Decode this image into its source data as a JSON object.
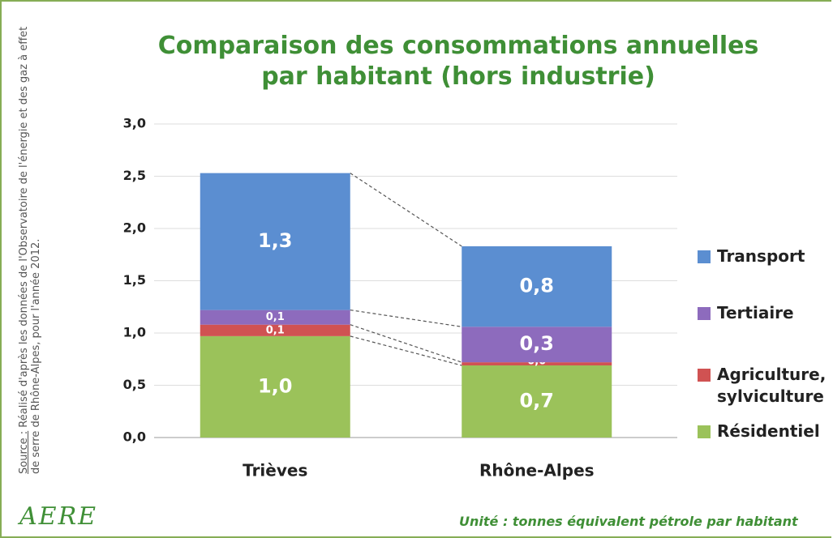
{
  "chart_data": {
    "type": "stacked_bar",
    "title": "Comparaison des consommations annuelles par habitant (hors industrie)",
    "categories": [
      "Trièves",
      "Rhône-Alpes"
    ],
    "series": [
      {
        "name": "Résidentiel",
        "color": "#9bc25a",
        "values": [
          0.97,
          0.69
        ],
        "value_labels": [
          "1,0",
          "0,7"
        ]
      },
      {
        "name": "Agriculture, sylviculture",
        "color": "#d05252",
        "values": [
          0.11,
          0.03
        ],
        "value_labels": [
          "0,1",
          "0,0"
        ]
      },
      {
        "name": "Tertiaire",
        "color": "#8d6bbd",
        "values": [
          0.14,
          0.34
        ],
        "value_labels": [
          "0,1",
          "0,3"
        ]
      },
      {
        "name": "Transport",
        "color": "#5b8ed1",
        "values": [
          1.31,
          0.77
        ],
        "value_labels": [
          "1,3",
          "0,8"
        ]
      }
    ],
    "ylim": [
      0,
      3
    ],
    "yticks": [
      {
        "value": 0,
        "label": "0,0"
      },
      {
        "value": 0.5,
        "label": "0,5"
      },
      {
        "value": 1,
        "label": "1,0"
      },
      {
        "value": 1.5,
        "label": "1,5"
      },
      {
        "value": 2,
        "label": "2,0"
      },
      {
        "value": 2.5,
        "label": "2,5"
      },
      {
        "value": 3,
        "label": "3,0"
      }
    ],
    "grid": true,
    "legend": "right",
    "unit_note": "Unité : tonnes équivalent pétrole par habitant"
  },
  "source": {
    "label": "Source :",
    "text": "Réalisé d'après les données de l'Observatoire de l'énergie et des gaz à effet de serre de Rhône-Alpes, pour l'année 2012."
  },
  "logo": "AERE"
}
